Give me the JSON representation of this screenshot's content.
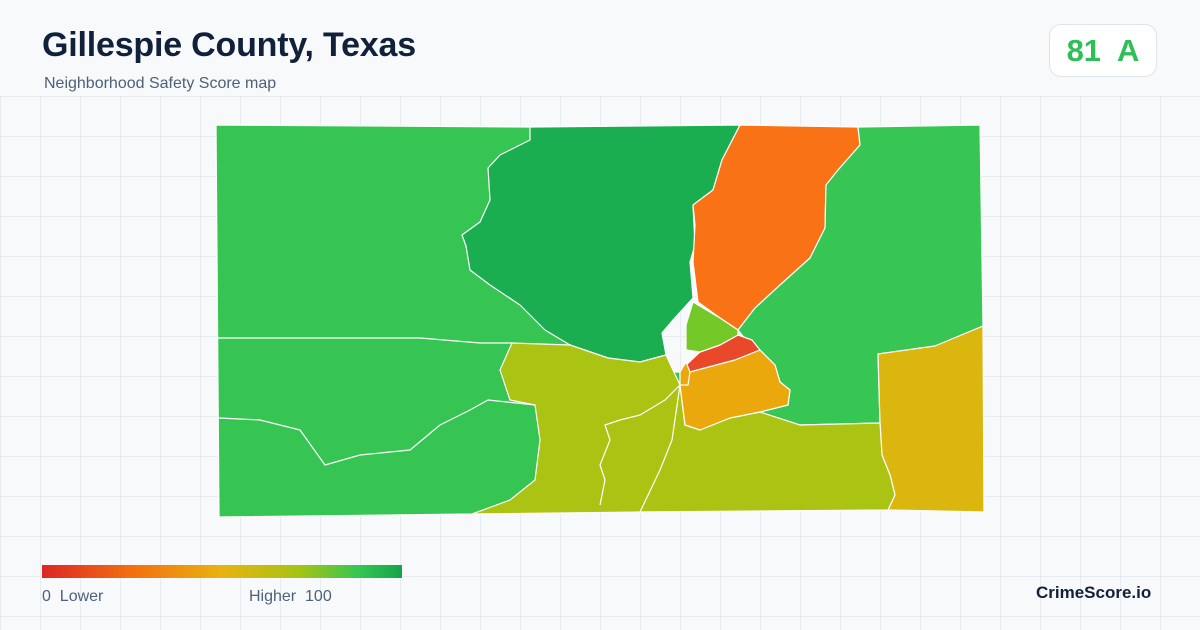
{
  "header": {
    "title": "Gillespie County, Texas",
    "subtitle": "Neighborhood Safety Score map"
  },
  "score": {
    "value": "81",
    "grade": "A",
    "color": "#2fbf57"
  },
  "map": {
    "region_colors": {
      "west": "#36c552",
      "north": "#1bae50",
      "northeast": "#37c553",
      "orange_strip": "#f97316",
      "south_central": "#abc313",
      "east": "#dab60f",
      "center_red": "#e9482a",
      "center_orange": "#eaa80d",
      "center_green": "#74c928"
    }
  },
  "legend": {
    "min_value": "0",
    "min_label": "Lower",
    "max_label": "Higher",
    "max_value": "100",
    "low_color": "#dc2626",
    "high_color": "#16a34a"
  },
  "footer": {
    "brand": "CrimeScore.io"
  }
}
